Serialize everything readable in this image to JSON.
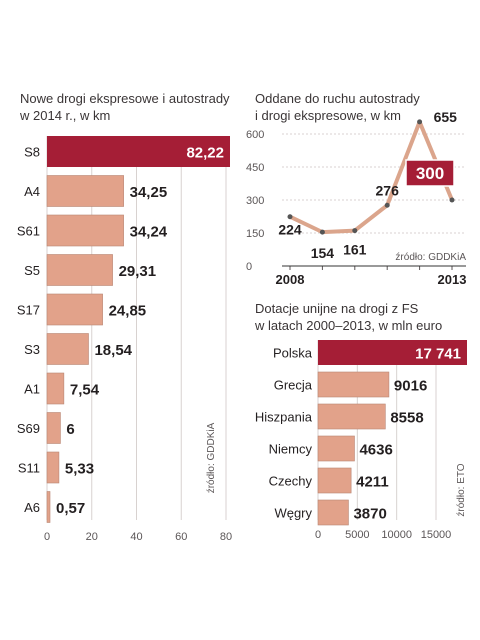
{
  "colors": {
    "highlight": "#a51e36",
    "bar": "#e2a28a",
    "bar_stroke": "#ffffff",
    "line": "#dba58c",
    "grid": "#d8d2d0",
    "text": "#231f20",
    "muted": "#5b5657"
  },
  "chart_data": [
    {
      "type": "bar",
      "orientation": "horizontal",
      "title": "Nowe drogi ekspresowe i autostrady\nw 2014 r., w km",
      "categories": [
        "S8",
        "A4",
        "S61",
        "S5",
        "S17",
        "S3",
        "A1",
        "S69",
        "S11",
        "A6"
      ],
      "values": [
        82.22,
        34.25,
        34.24,
        29.31,
        24.85,
        18.54,
        7.54,
        6,
        5.33,
        0.57
      ],
      "value_labels": [
        "82,22",
        "34,25",
        "34,24",
        "29,31",
        "24,85",
        "18,54",
        "7,54",
        "6",
        "5,33",
        "0,57"
      ],
      "highlight_index": 0,
      "xlim": [
        0,
        80
      ],
      "xticks": [
        0,
        20,
        40,
        60,
        80
      ],
      "grid": true,
      "source": "źródło: GDDKiA"
    },
    {
      "type": "line",
      "title": "Oddane do ruchu autostrady\ni drogi ekspresowe, w km",
      "x": [
        2008,
        2009,
        2010,
        2011,
        2012,
        2013
      ],
      "values": [
        224,
        154,
        161,
        276,
        655,
        300
      ],
      "value_labels": [
        "224",
        "154",
        "161",
        "276",
        "655",
        "300"
      ],
      "highlight_index": 5,
      "x_tick_labels": [
        "2008",
        "2013"
      ],
      "ylim": [
        0,
        600
      ],
      "yticks": [
        0,
        150,
        300,
        450,
        600
      ],
      "grid": true,
      "source": "źródło: GDDKiA"
    },
    {
      "type": "bar",
      "orientation": "horizontal",
      "title": "Dotacje unijne na drogi z FS\nw latach 2000–2013, w mln euro",
      "categories": [
        "Polska",
        "Grecja",
        "Hiszpania",
        "Niemcy",
        "Czechy",
        "Węgry"
      ],
      "values": [
        17741,
        9016,
        8558,
        4636,
        4211,
        3870
      ],
      "value_labels": [
        "17 741",
        "9016",
        "8558",
        "4636",
        "4211",
        "3870"
      ],
      "highlight_index": 0,
      "xlim": [
        0,
        15000
      ],
      "xticks": [
        0,
        5000,
        10000,
        15000
      ],
      "grid": true,
      "source": "źródło: ETO"
    }
  ]
}
